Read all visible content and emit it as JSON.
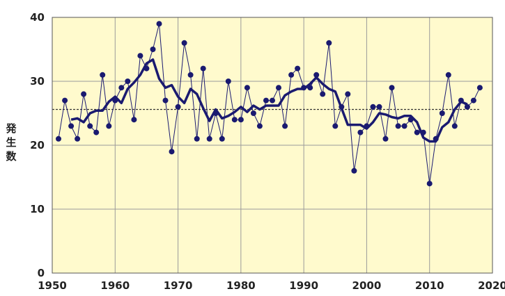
{
  "chart_data": {
    "type": "line",
    "title": "",
    "xlabel": "",
    "ylabel": "発生数",
    "xlim": [
      1950,
      2020
    ],
    "ylim": [
      0,
      40
    ],
    "x_ticks": [
      "1950",
      "1960",
      "1970",
      "1980",
      "1990",
      "2000",
      "2010",
      "2020"
    ],
    "y_ticks": [
      "0",
      "10",
      "20",
      "30",
      "40"
    ],
    "grid": true,
    "legend": "none",
    "reference_line": 25.6,
    "colors": {
      "plot_background": "#FFFACD",
      "grid": "#9a9a9a",
      "series_annual": "#1a1a70",
      "series_moving_average": "#1a1a70",
      "reference_line": "#333333"
    },
    "series": [
      {
        "style": "thin line with markers",
        "x": [
          1951,
          1952,
          1953,
          1954,
          1955,
          1956,
          1957,
          1958,
          1959,
          1960,
          1961,
          1962,
          1963,
          1964,
          1965,
          1966,
          1967,
          1968,
          1969,
          1970,
          1971,
          1972,
          1973,
          1974,
          1975,
          1976,
          1977,
          1978,
          1979,
          1980,
          1981,
          1982,
          1983,
          1984,
          1985,
          1986,
          1987,
          1988,
          1989,
          1990,
          1991,
          1992,
          1993,
          1994,
          1995,
          1996,
          1997,
          1998,
          1999,
          2000,
          2001,
          2002,
          2003,
          2004,
          2005,
          2006,
          2007,
          2008,
          2009,
          2010,
          2011,
          2012,
          2013,
          2014,
          2015,
          2016,
          2017,
          2018
        ],
        "values": [
          21,
          27,
          23,
          21,
          28,
          23,
          22,
          31,
          23,
          27,
          29,
          30,
          24,
          34,
          32,
          35,
          39,
          27,
          19,
          26,
          36,
          31,
          21,
          32,
          21,
          25,
          21,
          30,
          24,
          24,
          29,
          25,
          23,
          27,
          27,
          29,
          23,
          31,
          32,
          29,
          29,
          31,
          28,
          36,
          23,
          26,
          28,
          16,
          22,
          23,
          26,
          26,
          21,
          29,
          23,
          23,
          24,
          22,
          22,
          14,
          21,
          25,
          31,
          23,
          27,
          26,
          27,
          29
        ]
      },
      {
        "style": "thick line",
        "x": [
          1953,
          1954,
          1955,
          1956,
          1957,
          1958,
          1959,
          1960,
          1961,
          1962,
          1963,
          1964,
          1965,
          1966,
          1967,
          1968,
          1969,
          1970,
          1971,
          1972,
          1973,
          1974,
          1975,
          1976,
          1977,
          1978,
          1979,
          1980,
          1981,
          1982,
          1983,
          1984,
          1985,
          1986,
          1987,
          1988,
          1989,
          1990,
          1991,
          1992,
          1993,
          1994,
          1995,
          1996,
          1997,
          1998,
          1999,
          2000,
          2001,
          2002,
          2003,
          2004,
          2005,
          2006,
          2007,
          2008,
          2009,
          2010,
          2011,
          2012,
          2013,
          2014,
          2015,
          2016
        ],
        "values": [
          24,
          24.2,
          23.6,
          25,
          25.4,
          25.4,
          26.8,
          27.6,
          26.6,
          28.8,
          29.8,
          31,
          32.8,
          33.4,
          30.4,
          29,
          29.4,
          27.6,
          26.6,
          28.8,
          28,
          25.8,
          23.8,
          25.6,
          24.2,
          24.6,
          25.2,
          26,
          25.2,
          26.2,
          25.6,
          26.2,
          26.2,
          26.2,
          27.8,
          28.4,
          28.8,
          28.8,
          29.6,
          30.6,
          29.6,
          28.8,
          28.4,
          25.8,
          23.2,
          23.2,
          23.2,
          22.6,
          23.6,
          25,
          24.8,
          24.4,
          24.2,
          24.6,
          24.6,
          23.6,
          21.2,
          20.6,
          20.6,
          22.8,
          23.6,
          25.6,
          26.8,
          26.4
        ]
      }
    ]
  }
}
